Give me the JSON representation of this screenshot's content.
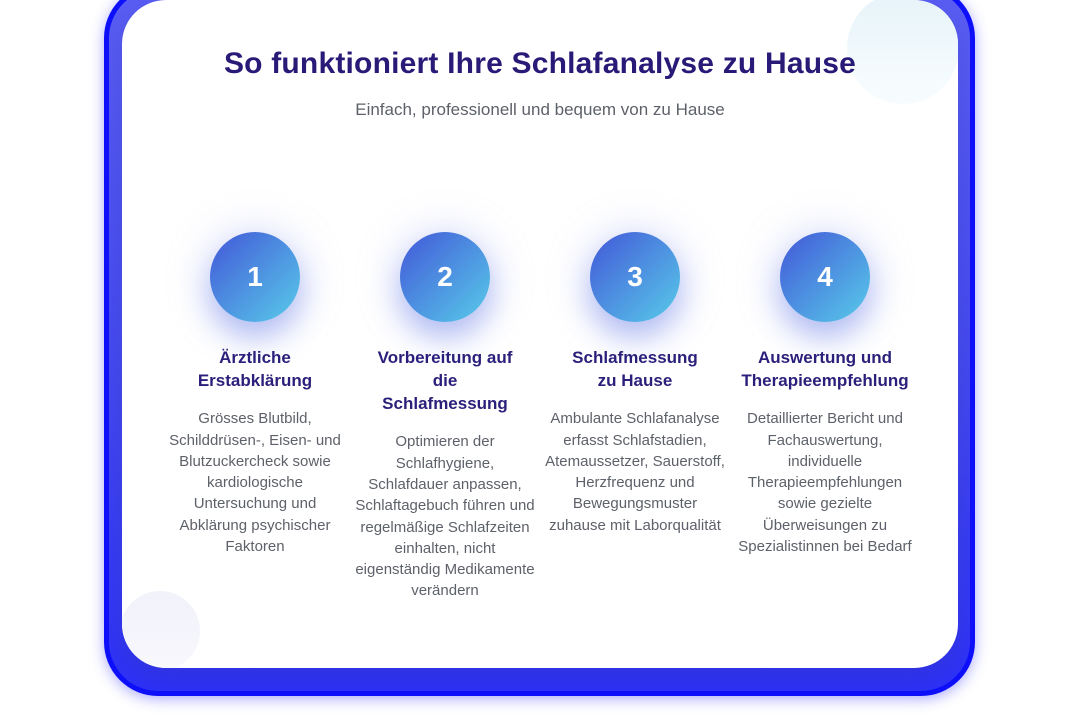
{
  "header": {
    "title": "So funktioniert Ihre Schlafanalyse zu Hause",
    "subtitle": "Einfach, professionell und bequem von zu Hause"
  },
  "steps": [
    {
      "number": "1",
      "heading": "Ärztliche\nErstabklärung",
      "description": "Grösses Blutbild, Schilddrüsen-, Eisen- und Blutzuckercheck sowie kardiologische Untersuchung und Abklärung psychischer Faktoren"
    },
    {
      "number": "2",
      "heading": "Vorbereitung auf\ndie\nSchlafmessung",
      "description": "Optimieren der Schlafhygiene, Schlafdauer anpassen, Schlaftagebuch führen und regelmäßige Schlafzeiten einhalten, nicht eigenständig Medikamente verändern"
    },
    {
      "number": "3",
      "heading": "Schlafmessung\nzu Hause",
      "description": "Ambulante Schlafanalyse erfasst Schlafstadien, Atemaussetzer, Sauerstoff, Herzfrequenz und Bewegungsmuster zuhause mit Laborqualität"
    },
    {
      "number": "4",
      "heading": "Auswertung und\nTherapieempfehlung",
      "description": "Detaillierter Bericht und Fachauswertung, individuelle Therapieempfehlungen sowie gezielte Überweisungen zu Spezialistinnen bei Bedarf"
    }
  ],
  "colors": {
    "title": "#2a1a78",
    "step_heading": "#2a1f7a",
    "body_text": "#5d6169",
    "badge_gradient_start": "#4257d8",
    "badge_gradient_end": "#58cbe9",
    "frame_fill": "#4348f0",
    "frame_edge": "#0f10fb",
    "card_background": "#ffffff"
  }
}
